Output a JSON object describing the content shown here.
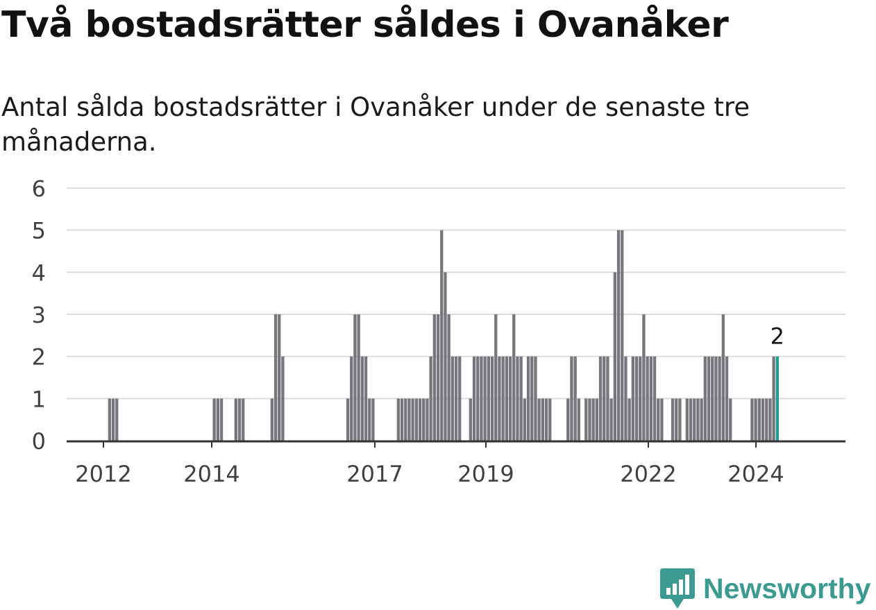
{
  "title": "Två bostadsrätter såldes i Ovanåker",
  "subtitle": "Antal sålda bostadsrätter i Ovanåker under de senaste tre månaderna.",
  "brand": {
    "name": "Newsworthy",
    "icon": "newsworthy-bar-chart-logo-icon",
    "color": "#3c9a90"
  },
  "chart_data": {
    "type": "bar",
    "ylim": [
      0,
      6
    ],
    "yticks": [
      "0",
      "1",
      "2",
      "3",
      "4",
      "5",
      "6"
    ],
    "xticks": [
      "2012",
      "2014",
      "2017",
      "2019",
      "2022",
      "2024"
    ],
    "grid": true,
    "bar_color": "#76767b",
    "highlight_color": "#1a9e91",
    "highlight_label": "2",
    "series": [
      {
        "values": [
          0,
          0,
          0,
          0,
          0,
          0,
          0,
          0,
          0,
          0,
          0,
          1,
          1,
          1,
          0,
          0,
          0,
          0,
          0,
          0,
          0,
          0,
          0,
          0,
          0,
          0,
          0,
          0,
          0,
          0,
          0,
          0,
          0,
          0,
          0,
          0,
          0,
          0,
          0,
          0,
          1,
          1,
          1,
          0,
          0,
          0,
          1,
          1,
          1,
          0,
          0,
          0,
          0,
          0,
          0,
          0,
          1,
          3,
          3,
          2,
          0,
          0,
          0,
          0,
          0,
          0,
          0,
          0,
          0,
          0,
          0,
          0,
          0,
          0,
          0,
          0,
          0,
          1,
          2,
          3,
          3,
          2,
          2,
          1,
          1,
          0,
          0,
          0,
          0,
          0,
          0,
          1,
          1,
          1,
          1,
          1,
          1,
          1,
          1,
          1,
          2,
          3,
          3,
          5,
          4,
          3,
          2,
          2,
          2,
          0,
          0,
          1,
          2,
          2,
          2,
          2,
          2,
          2,
          3,
          2,
          2,
          2,
          2,
          3,
          2,
          2,
          1,
          2,
          2,
          2,
          1,
          1,
          1,
          1,
          0,
          0,
          0,
          0,
          1,
          2,
          2,
          1,
          0,
          1,
          1,
          1,
          1,
          2,
          2,
          2,
          1,
          4,
          5,
          5,
          2,
          1,
          2,
          2,
          2,
          3,
          2,
          2,
          2,
          1,
          1,
          0,
          0,
          1,
          1,
          1,
          0,
          1,
          1,
          1,
          1,
          1,
          2,
          2,
          2,
          2,
          2,
          3,
          2,
          1,
          0,
          0,
          0,
          0,
          0,
          1,
          1,
          1,
          1,
          1,
          1,
          2,
          2
        ]
      }
    ]
  }
}
